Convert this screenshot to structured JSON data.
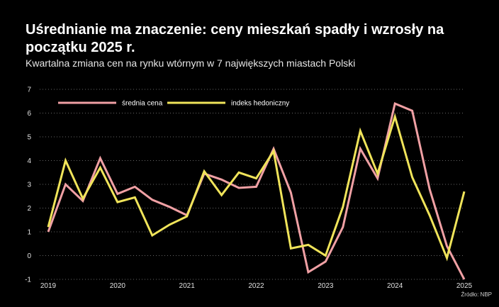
{
  "title": "Uśrednianie ma znaczenie: ceny mieszkań spadły i wzrosły na początku 2025 r.",
  "subtitle": "Kwartalna zmiana cen na rynku wtórnym w 7 największych miastach Polski",
  "source": "Źródło: NBP",
  "colors": {
    "background": "#000000",
    "grid": "#666666",
    "series_pink": "#f0a0a4",
    "series_yellow": "#f0e45a"
  },
  "chart_data": {
    "type": "line",
    "ylim": [
      -1,
      7
    ],
    "yticks": [
      -1,
      0,
      1,
      2,
      3,
      4,
      5,
      6,
      7
    ],
    "xlim": [
      2019,
      2025
    ],
    "xticks": [
      "2019",
      "2020",
      "2021",
      "2022",
      "2023",
      "2024",
      "2025"
    ],
    "grid": "horizontal dotted",
    "legend": "top-left",
    "x": [
      2019.0,
      2019.25,
      2019.5,
      2019.75,
      2020.0,
      2020.25,
      2020.5,
      2020.75,
      2021.0,
      2021.25,
      2021.5,
      2021.75,
      2022.0,
      2022.25,
      2022.5,
      2022.75,
      2023.0,
      2023.25,
      2023.5,
      2023.75,
      2024.0,
      2024.25,
      2024.5,
      2024.75,
      2025.0
    ],
    "series": [
      {
        "name": "średnia cena",
        "color": "#f0a0a4",
        "values": [
          1.0,
          3.0,
          2.3,
          4.1,
          2.6,
          2.9,
          2.35,
          2.05,
          1.7,
          3.45,
          3.2,
          2.85,
          2.9,
          4.5,
          2.65,
          -0.7,
          -0.25,
          1.2,
          4.5,
          3.25,
          6.4,
          6.1,
          2.8,
          0.4,
          -1.0
        ]
      },
      {
        "name": "indeks hedoniczny",
        "color": "#f0e45a",
        "values": [
          1.2,
          4.0,
          2.4,
          3.7,
          2.25,
          2.45,
          0.85,
          1.3,
          1.65,
          3.55,
          2.55,
          3.5,
          3.25,
          4.4,
          0.3,
          0.45,
          0.0,
          2.05,
          5.25,
          3.45,
          5.85,
          3.3,
          1.7,
          -0.1,
          2.7
        ]
      }
    ]
  }
}
